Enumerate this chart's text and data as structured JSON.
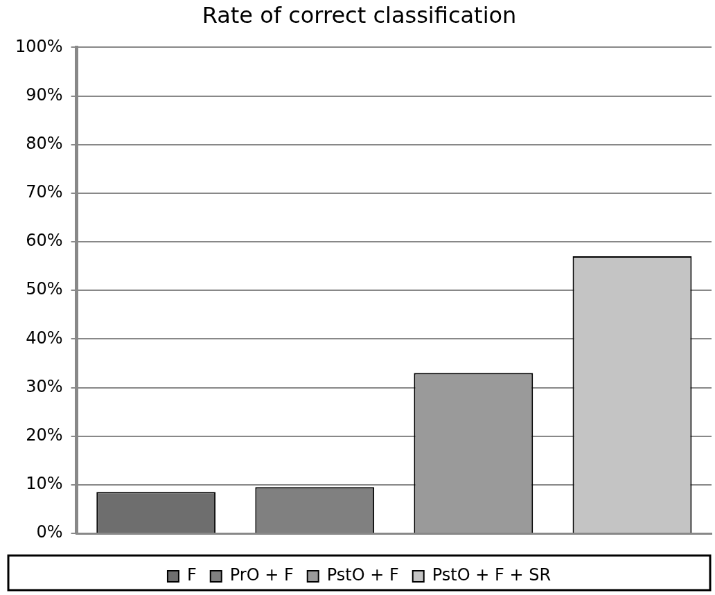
{
  "chart_data": {
    "type": "bar",
    "title": "Rate of correct classification",
    "categories": [
      null
    ],
    "series": [
      {
        "name": "F",
        "color": "#6e6e6e",
        "values": [
          8.5
        ]
      },
      {
        "name": "PrO + F",
        "color": "#808080",
        "values": [
          9.5
        ]
      },
      {
        "name": "PstO + F",
        "color": "#9a9a9a",
        "values": [
          33
        ]
      },
      {
        "name": "PstO + F + SR",
        "color": "#c4c4c4",
        "values": [
          57
        ]
      }
    ],
    "ylim": [
      0,
      100
    ],
    "yticks": [
      {
        "value": 0,
        "label": "0%"
      },
      {
        "value": 10,
        "label": "10%"
      },
      {
        "value": 20,
        "label": "20%"
      },
      {
        "value": 30,
        "label": "30%"
      },
      {
        "value": 40,
        "label": "40%"
      },
      {
        "value": 50,
        "label": "50%"
      },
      {
        "value": 60,
        "label": "60%"
      },
      {
        "value": 70,
        "label": "70%"
      },
      {
        "value": 80,
        "label": "80%"
      },
      {
        "value": 90,
        "label": "90%"
      },
      {
        "value": 100,
        "label": "100%"
      }
    ],
    "grid": "y",
    "legend": "bottom"
  }
}
